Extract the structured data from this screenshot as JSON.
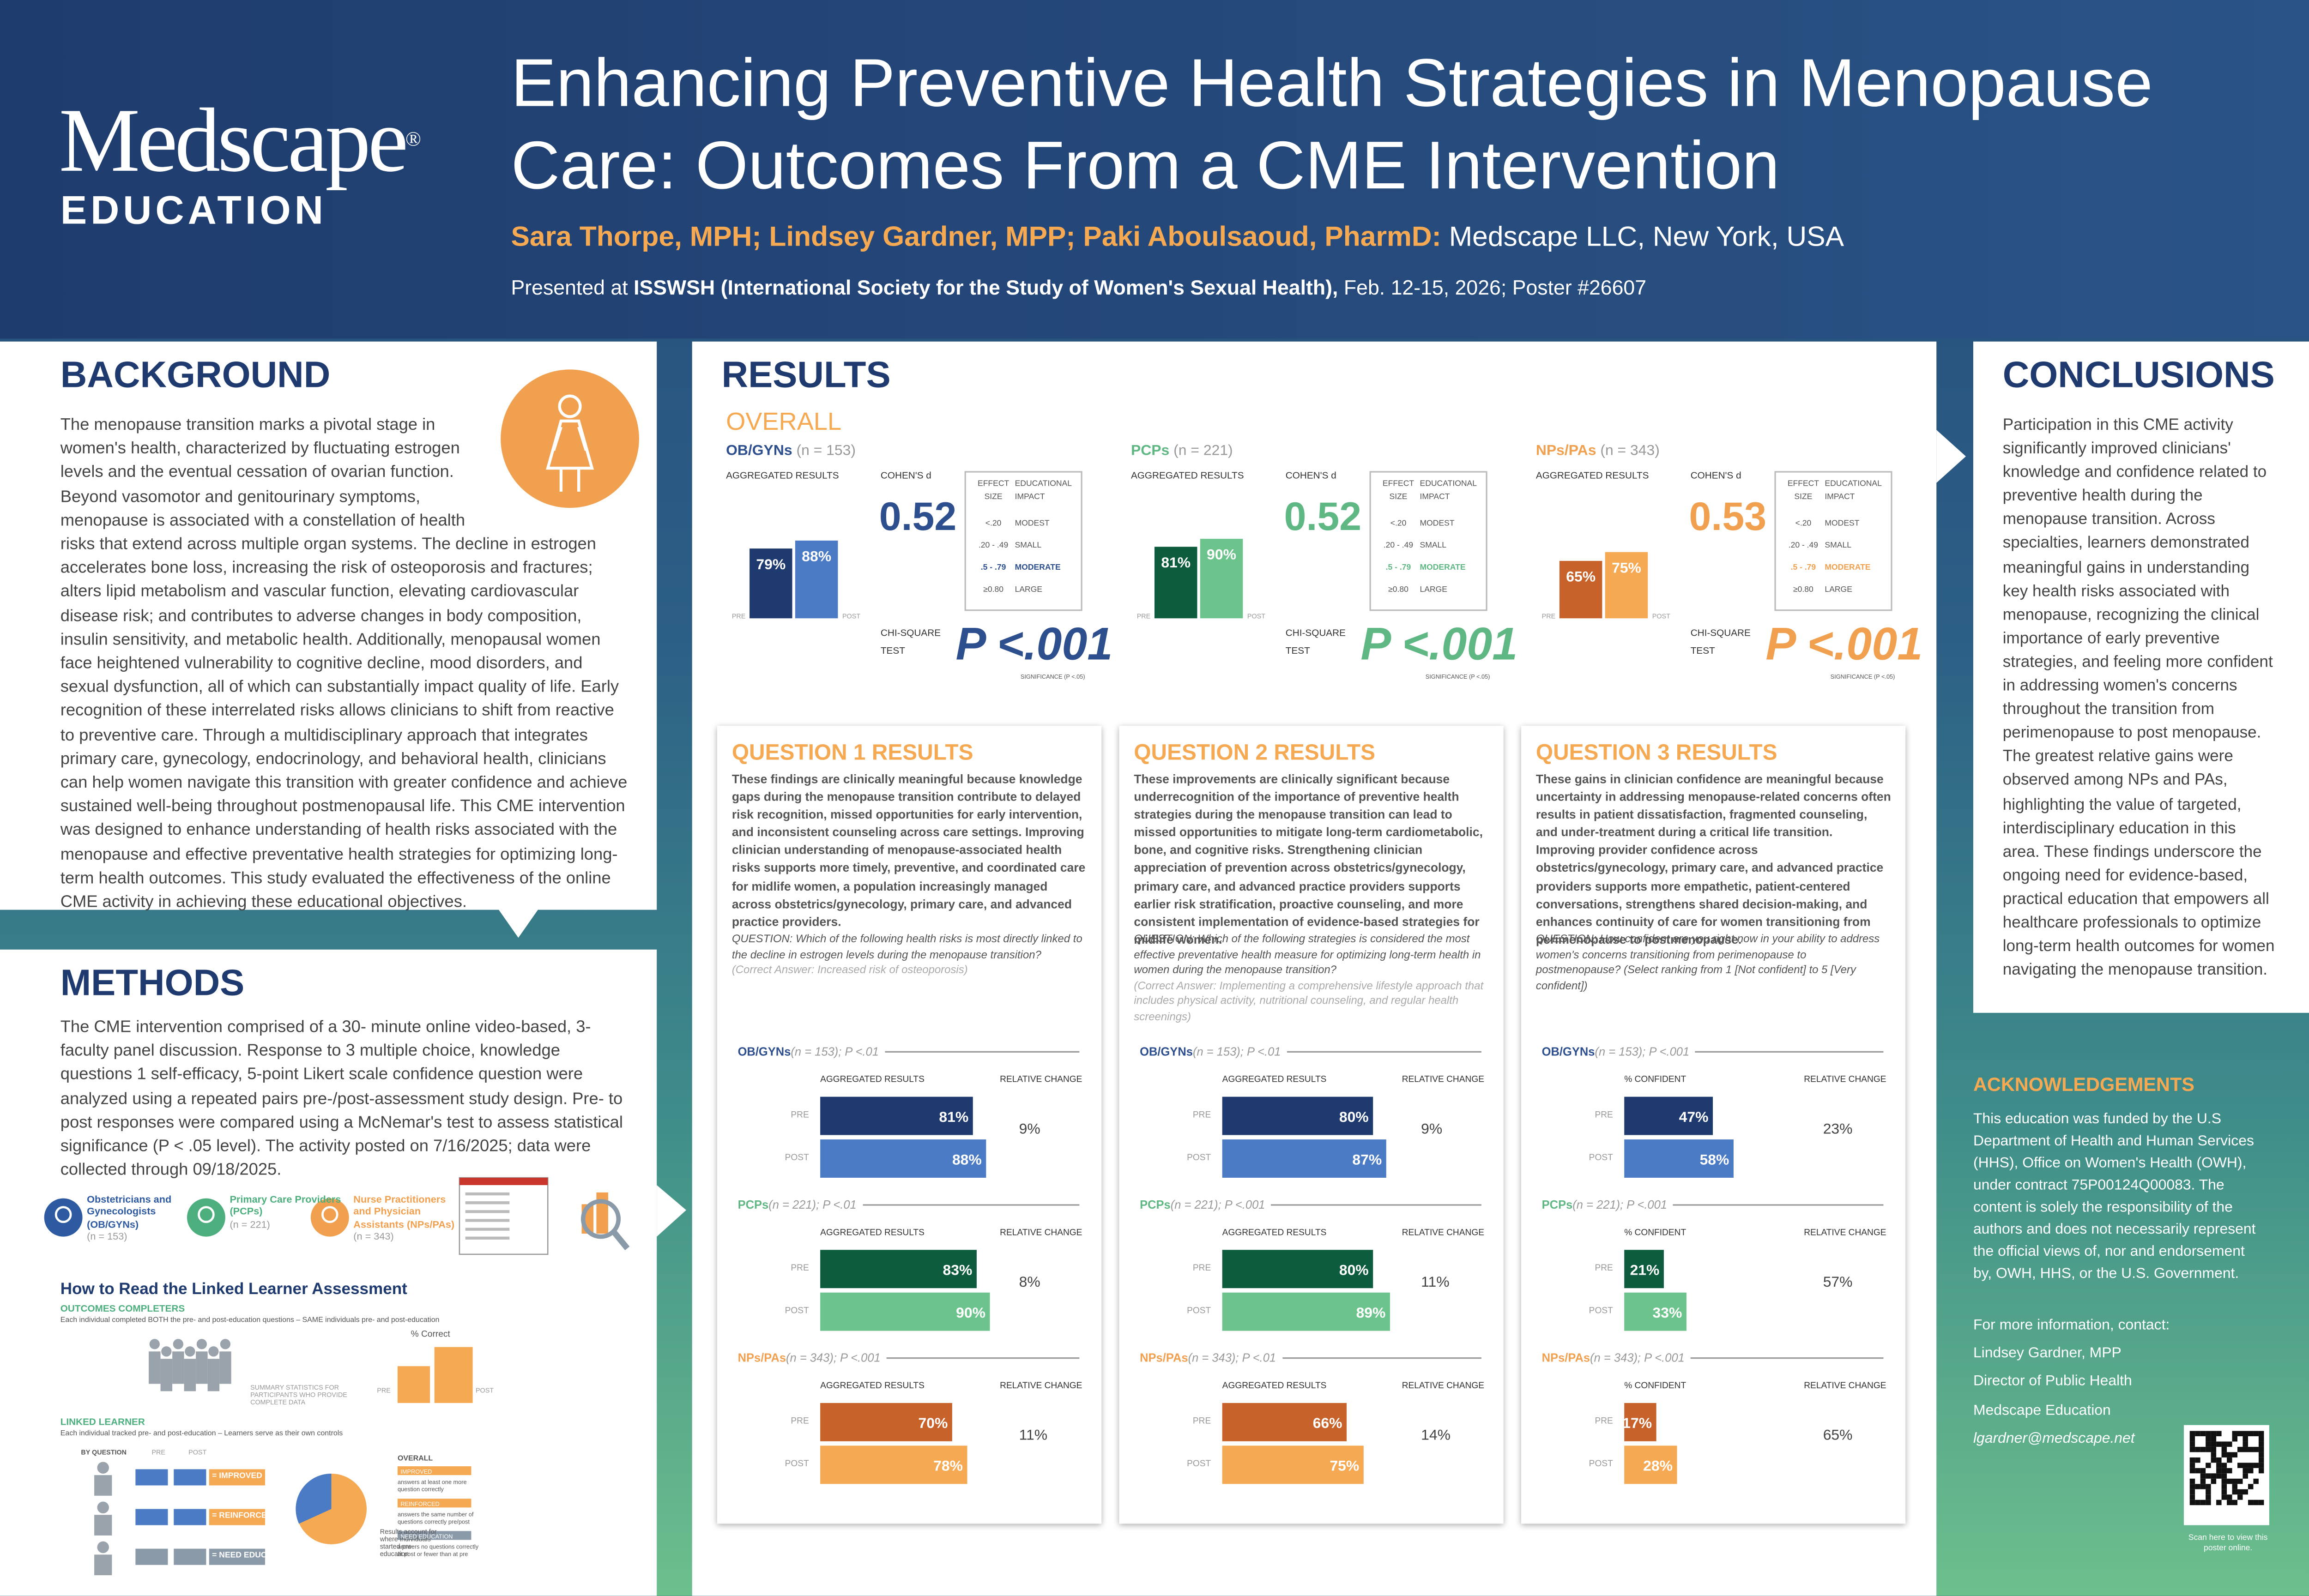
{
  "header": {
    "logo": "Medscape",
    "logo_mark": "®",
    "logo_sub": "EDUCATION",
    "title": "Enhancing Preventive Health Strategies in Menopause Care: Outcomes From a CME Intervention",
    "authors": "Sara Thorpe, MPH; Lindsey Gardner, MPP; Paki Aboulsaoud, PharmD:",
    "affiliation": "Medscape LLC, New York, USA",
    "presented_prefix": "Presented at",
    "conference": "ISSWSH (International Society for the Study of Women's Sexual Health),",
    "presented_suffix": "Feb. 12-15, 2026; Poster #26607"
  },
  "background": {
    "heading": "BACKGROUND",
    "body": "The menopause transition marks a pivotal stage in women's health, characterized by fluctuating estrogen levels and the eventual cessation of ovarian function. Beyond vasomotor and genitourinary symptoms, menopause is associated with a constellation of health risks that extend across multiple organ systems. The decline in estrogen accelerates bone loss, increasing the risk of osteoporosis and fractures; alters lipid metabolism and vascular function, elevating cardiovascular disease risk; and contributes to adverse changes in body composition, insulin sensitivity, and metabolic health. Additionally, menopausal women face heightened vulnerability to cognitive decline, mood disorders, and sexual dysfunction, all of which can substantially impact quality of life. Early recognition of these interrelated risks allows clinicians to shift from reactive to preventive care. Through a multidisciplinary approach that integrates primary care, gynecology, endocrinology, and behavioral health, clinicians can help women navigate this transition with greater confidence and achieve sustained well-being throughout postmenopausal life. This CME intervention was designed to enhance understanding of health risks associated with the menopause and effective preventative health strategies for optimizing long-term health outcomes. This study evaluated the effectiveness of the online CME activity in achieving these educational objectives."
  },
  "methods": {
    "heading": "METHODS",
    "body": "The CME intervention comprised of a 30- minute online video-based, 3-faculty panel discussion. Response to 3 multiple choice, knowledge questions 1 self-efficacy, 5-point Likert scale confidence question were analyzed using a repeated pairs pre-/post-assessment study design. Pre- to post responses were compared using a McNemar's test to assess statistical significance (P < .05 level). The activity posted on 7/16/2025; data were collected through 09/18/2025.",
    "audiences": [
      {
        "label": "Obstetricians and Gynecologists (OB/GYNs)",
        "n": "(n = 153)",
        "color": "#2d5aa0"
      },
      {
        "label": "Primary Care Providers (PCPs)",
        "n": "(n = 221)",
        "color": "#4caf7d"
      },
      {
        "label": "Nurse Practitioners and Physician Assistants (NPs/PAs)",
        "n": "(n = 343)",
        "color": "#f0a04f"
      }
    ],
    "guide": {
      "title": "How to Read the Linked Learner Assessment",
      "completers": "OUTCOMES COMPLETERS",
      "completers_desc": "Each individual completed BOTH the pre- and post-education questions – SAME individuals pre- and post-education",
      "percent_correct": "% Correct",
      "summary": "SUMMARY STATISTICS FOR PARTICIPANTS WHO PROVIDE COMPLETE DATA",
      "pre": "PRE",
      "post": "POST",
      "linked": "LINKED LEARNER",
      "linked_desc": "Each individual tracked pre- and post-education – Learners serve as their own controls",
      "by_question": "BY QUESTION",
      "outcomes": [
        "= IMPROVED",
        "= REINFORCED",
        "= NEED EDUCATION"
      ],
      "overall": "OVERALL",
      "legend": [
        {
          "label": "IMPROVED",
          "desc": "answers at least one more question correctly"
        },
        {
          "label": "REINFORCED",
          "desc": "answers the same number of questions correctly pre/post"
        },
        {
          "label": "NEED EDUCATION",
          "desc": "answers no questions correctly at post or fewer than at pre"
        }
      ],
      "pie_note": "Results account for where individuals started pre-education"
    }
  },
  "results": {
    "heading": "RESULTS",
    "overall_heading": "OVERALL",
    "labels": {
      "aggregated": "AGGREGATED RESULTS",
      "pre": "PRE",
      "post": "POST",
      "cohens": "COHEN'S d",
      "chi": "CHI-SQUARE TEST",
      "significance": "SIGNIFICANCE (P <.05)",
      "change": "RELATIVE CHANGE",
      "effect_header": [
        "EFFECT SIZE",
        "EDUCATIONAL IMPACT"
      ],
      "effect_rows": [
        [
          "<.20",
          "MODEST"
        ],
        [
          ".20 - .49",
          "SMALL"
        ],
        [
          ".5 - .79",
          "MODERATE"
        ],
        [
          "≥0.80",
          "LARGE"
        ]
      ]
    },
    "overall": [
      {
        "group": "OB/GYNs",
        "n": "(n = 153)",
        "color": "#2d4f8e",
        "pre_color": "#1f3a6e",
        "post_color": "#4a7bc4",
        "values": [
          79,
          88
        ],
        "value_labels": [
          "79%",
          "88%"
        ],
        "cohens_d": "0.52",
        "p": "P <.001"
      },
      {
        "group": "PCPs",
        "n": "(n = 221)",
        "color": "#5fb883",
        "pre_color": "#0d5c3d",
        "post_color": "#6cc48c",
        "values": [
          81,
          90
        ],
        "value_labels": [
          "81%",
          "90%"
        ],
        "cohens_d": "0.52",
        "p": "P <.001"
      },
      {
        "group": "NPs/PAs",
        "n": "(n = 343)",
        "color": "#f0a04f",
        "pre_color": "#c6622a",
        "post_color": "#f5a953",
        "values": [
          65,
          75
        ],
        "value_labels": [
          "65%",
          "75%"
        ],
        "cohens_d": "0.53",
        "p": "P <.001"
      }
    ],
    "questions": [
      {
        "title": "QUESTION 1 RESULTS",
        "body": "These findings are clinically meaningful because knowledge gaps during the menopause transition contribute to delayed risk recognition, missed opportunities for early intervention, and inconsistent counseling across care settings. Improving clinician understanding of menopause-associated health risks supports more timely, preventive, and coordinated care for midlife women, a population increasingly managed across obstetrics/gynecology, primary care, and advanced practice providers.",
        "question": "QUESTION: Which of the following health risks is most directly linked to the decline in estrogen levels during the menopause transition?",
        "answer": "(Correct Answer: Increased risk of osteoporosis)",
        "col_label": "AGGREGATED RESULTS",
        "groups": [
          {
            "name": "OB/GYNs",
            "detail": "(n = 153); P <.01",
            "values": [
              81,
              88
            ],
            "value_labels": [
              "81%",
              "88%"
            ],
            "change": "9%"
          },
          {
            "name": "PCPs",
            "detail": "(n = 221); P <.01",
            "values": [
              83,
              90
            ],
            "value_labels": [
              "83%",
              "90%"
            ],
            "change": "8%"
          },
          {
            "name": "NPs/PAs",
            "detail": "(n = 343); P <.001",
            "values": [
              70,
              78
            ],
            "value_labels": [
              "70%",
              "78%"
            ],
            "change": "11%"
          }
        ]
      },
      {
        "title": "QUESTION 2 RESULTS",
        "body": "These improvements are clinically significant because underrecognition of the importance of preventive health strategies during the menopause transition can lead to missed opportunities to mitigate long-term cardiometabolic, bone, and cognitive risks. Strengthening clinician appreciation of prevention across obstetrics/gynecology, primary care, and advanced practice providers supports earlier risk stratification, proactive counseling, and more consistent implementation of evidence-based strategies for midlife women.",
        "question": "QUESTION: Which of the following strategies is considered the most effective preventative health measure for optimizing long-term health in women during the menopause transition?",
        "answer": "(Correct Answer: Implementing a comprehensive lifestyle approach that includes physical activity, nutritional counseling, and regular health screenings)",
        "col_label": "AGGREGATED RESULTS",
        "groups": [
          {
            "name": "OB/GYNs",
            "detail": "(n = 153); P <.01",
            "values": [
              80,
              87
            ],
            "value_labels": [
              "80%",
              "87%"
            ],
            "change": "9%"
          },
          {
            "name": "PCPs",
            "detail": "(n = 221); P <.001",
            "values": [
              80,
              89
            ],
            "value_labels": [
              "80%",
              "89%"
            ],
            "change": "11%"
          },
          {
            "name": "NPs/PAs",
            "detail": "(n = 343); P <.01",
            "values": [
              66,
              75
            ],
            "value_labels": [
              "66%",
              "75%"
            ],
            "change": "14%"
          }
        ]
      },
      {
        "title": "QUESTION 3 RESULTS",
        "body": "These gains in clinician confidence are meaningful because uncertainty in addressing menopause-related concerns often results in patient dissatisfaction, fragmented counseling, and under-treatment during a critical life transition. Improving provider confidence across obstetrics/gynecology, primary care, and advanced practice providers supports more empathetic, patient-centered conversations, strengthens shared decision-making, and enhances continuity of care for women transitioning from perimenopause to postmenopause.",
        "question": "QUESTION: How confident are you right now in your ability to address women's concerns transitioning from perimenopause to postmenopause? (Select ranking from 1 [Not confident] to 5 [Very confident])",
        "col_label": "% CONFIDENT",
        "groups": [
          {
            "name": "OB/GYNs",
            "detail": "(n = 153); P <.001",
            "values": [
              47,
              58
            ],
            "value_labels": [
              "47%",
              "58%"
            ],
            "change": "23%"
          },
          {
            "name": "PCPs",
            "detail": "(n = 221); P <.001",
            "values": [
              21,
              33
            ],
            "value_labels": [
              "21%",
              "33%"
            ],
            "change": "57%"
          },
          {
            "name": "NPs/PAs",
            "detail": "(n = 343); P <.001",
            "values": [
              17,
              28
            ],
            "value_labels": [
              "17%",
              "28%"
            ],
            "change": "65%"
          }
        ]
      }
    ]
  },
  "conclusions": {
    "heading": "CONCLUSIONS",
    "body": "Participation in this CME activity significantly improved clinicians' knowledge and confidence related to preventive health during the menopause transition. Across specialties, learners demonstrated meaningful gains in understanding key health risks associated with menopause, recognizing the clinical importance of early preventive strategies, and feeling more confident in addressing women's concerns throughout the transition from perimenopause to post menopause. The greatest relative gains were observed among NPs and PAs, highlighting the value of targeted, interdisciplinary education in this area. These findings underscore the ongoing need for evidence-based, practical education that empowers all healthcare professionals to optimize long-term health outcomes for women navigating the menopause transition."
  },
  "acknowledgements": {
    "heading": "ACKNOWLEDGEMENTS",
    "body": "This education was funded by the U.S Department of Health and Human Services (HHS), Office on Women's Health (OWH), under contract 75P00124Q00083. The content is solely the responsibility of the authors and does not necessarily represent the official views of, nor and endorsement by, OWH, HHS, or the U.S. Government.",
    "contact": [
      "For more information, contact:",
      "Lindsey Gardner, MPP",
      "Director of Public Health",
      "Medscape Education",
      "lgardner@medscape.net"
    ],
    "qr_caption": "Scan here to view this poster online."
  }
}
